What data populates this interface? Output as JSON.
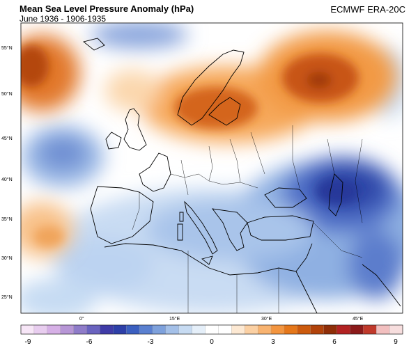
{
  "header": {
    "title": "Mean Sea Level Pressure Anomaly (hPa)",
    "subtitle": "June 1936 - 1906-1935",
    "source": "ECMWF ERA-20C"
  },
  "map": {
    "lat_labels": [
      "55°N",
      "50°N",
      "45°N",
      "40°N",
      "35°N",
      "30°N",
      "25°N"
    ],
    "lon_labels": [
      "0°",
      "15°E",
      "30°E",
      "45°E"
    ],
    "lat_ticks": [
      55,
      50,
      45,
      40,
      35,
      30,
      25
    ],
    "lon_ticks": [
      0,
      15,
      30,
      45
    ]
  },
  "colorbar": {
    "labels": [
      "-9",
      "-6",
      "-3",
      "0",
      "3",
      "6",
      "9"
    ],
    "colors": [
      "#f7e6f7",
      "#e8cdef",
      "#d6b0e6",
      "#b796d6",
      "#8f7cc9",
      "#6a63bf",
      "#3f3ba7",
      "#2d3fa8",
      "#3b5fc0",
      "#5a80d0",
      "#7ea1dc",
      "#a4c0e8",
      "#c7dbf2",
      "#e5eff9",
      "#ffffff",
      "#ffffff",
      "#fde9d3",
      "#fbd0a3",
      "#f8b370",
      "#f3953f",
      "#e5771a",
      "#cc5a0d",
      "#b1420a",
      "#8f2e08",
      "#b22222",
      "#8b1a1a",
      "#c0392b",
      "#f2bfbf",
      "#f7dede"
    ]
  }
}
